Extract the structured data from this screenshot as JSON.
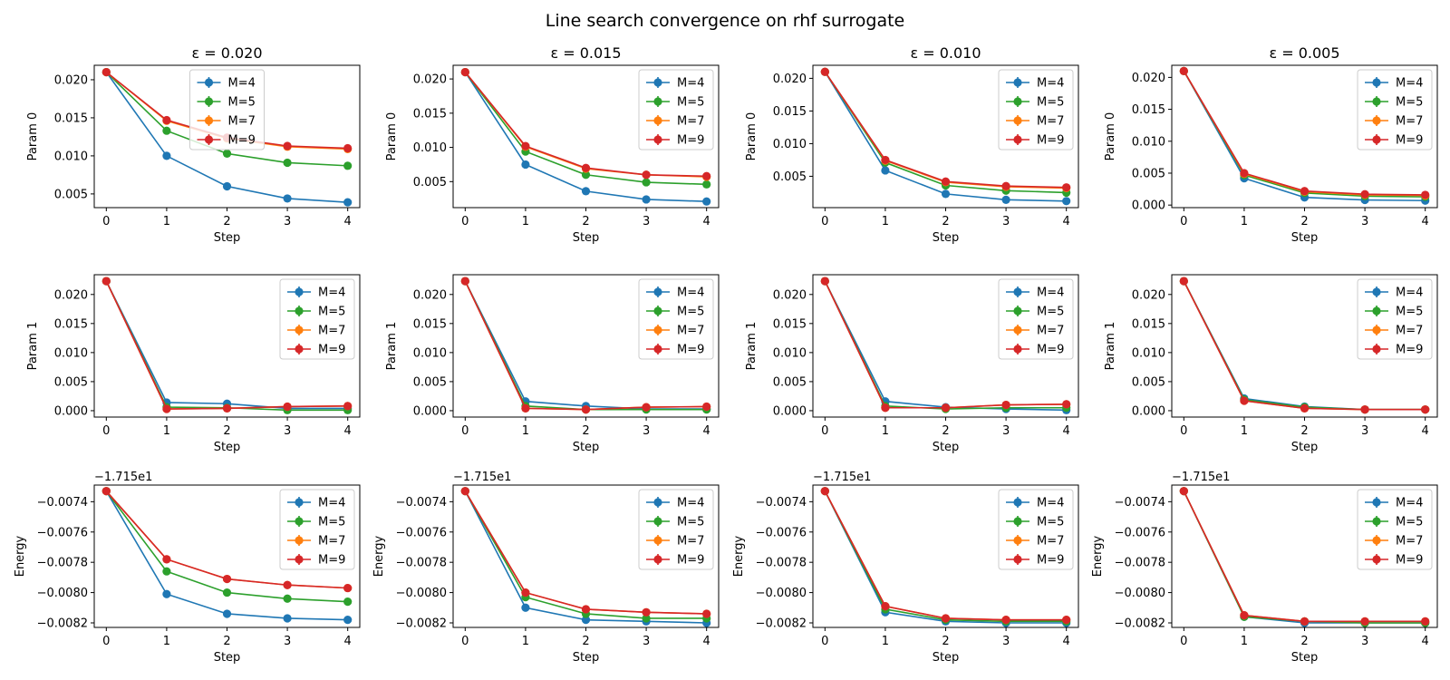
{
  "figure": {
    "suptitle": "Line search convergence on rhf surrogate",
    "colors": [
      "#1f77b4",
      "#2ca02c",
      "#ff7f0e",
      "#d62728"
    ]
  },
  "chart_data": {
    "type": "line",
    "x": [
      0,
      1,
      2,
      3,
      4
    ],
    "xlabel": "Step",
    "legend": [
      "M=4",
      "M=5",
      "M=7",
      "M=9"
    ],
    "columns": [
      {
        "title": "ε = 0.020",
        "legend_placement": [
          "upper-center",
          "upper-right",
          "upper-right"
        ]
      },
      {
        "title": "ε = 0.015",
        "legend_placement": [
          "upper-right",
          "upper-right",
          "upper-right"
        ]
      },
      {
        "title": "ε = 0.010",
        "legend_placement": [
          "upper-right",
          "upper-right",
          "upper-right"
        ]
      },
      {
        "title": "ε = 0.005",
        "legend_placement": [
          "upper-right",
          "upper-right",
          "upper-right"
        ]
      }
    ],
    "rows": [
      {
        "ylabel": "Param 0",
        "offset_text": "",
        "ylim": [
          0.0032,
          0.0215
        ],
        "ticks": [
          [
            [
              0.005,
              "0.005"
            ],
            [
              0.01,
              "0.010"
            ],
            [
              0.015,
              "0.015"
            ],
            [
              0.02,
              "0.020"
            ]
          ],
          [
            [
              0.005,
              "0.005"
            ],
            [
              0.01,
              "0.010"
            ],
            [
              0.015,
              "0.015"
            ],
            [
              0.02,
              "0.020"
            ]
          ],
          [
            [
              0.005,
              "0.005"
            ],
            [
              0.01,
              "0.010"
            ],
            [
              0.015,
              "0.015"
            ],
            [
              0.02,
              "0.020"
            ]
          ],
          [
            [
              0.0,
              "0.000"
            ],
            [
              0.005,
              "0.005"
            ],
            [
              0.01,
              "0.010"
            ],
            [
              0.015,
              "0.015"
            ],
            [
              0.02,
              "0.020"
            ]
          ]
        ],
        "ylims": [
          [
            0.0032,
            0.0219
          ],
          [
            0.0012,
            0.022
          ],
          [
            0.0002,
            0.022
          ],
          [
            -0.0004,
            0.0219
          ]
        ],
        "panels": [
          [
            [
              0.021,
              0.01,
              0.006,
              0.0044,
              0.0039
            ],
            [
              0.021,
              0.0133,
              0.0103,
              0.0091,
              0.0087
            ],
            [
              0.021,
              0.0146,
              0.0123,
              0.0112,
              0.0109
            ],
            [
              0.021,
              0.0147,
              0.0124,
              0.0113,
              0.011
            ]
          ],
          [
            [
              0.021,
              0.0075,
              0.0036,
              0.0024,
              0.0021
            ],
            [
              0.021,
              0.0094,
              0.006,
              0.0049,
              0.0046
            ],
            [
              0.021,
              0.0101,
              0.0069,
              0.006,
              0.0057
            ],
            [
              0.021,
              0.0102,
              0.007,
              0.006,
              0.0058
            ]
          ],
          [
            [
              0.021,
              0.0059,
              0.0023,
              0.0014,
              0.0012
            ],
            [
              0.021,
              0.0071,
              0.0036,
              0.0028,
              0.0025
            ],
            [
              0.021,
              0.0074,
              0.0041,
              0.0034,
              0.0032
            ],
            [
              0.021,
              0.0075,
              0.0042,
              0.0035,
              0.0033
            ]
          ],
          [
            [
              0.021,
              0.0042,
              0.0012,
              0.0008,
              0.0007
            ],
            [
              0.021,
              0.0047,
              0.0019,
              0.0014,
              0.0013
            ],
            [
              0.021,
              0.0049,
              0.0021,
              0.0016,
              0.0015
            ],
            [
              0.021,
              0.005,
              0.0022,
              0.0017,
              0.0016
            ]
          ]
        ]
      },
      {
        "ylabel": "Param 1",
        "offset_text": "",
        "ticks": [
          [
            [
              0.0,
              "0.000"
            ],
            [
              0.005,
              "0.005"
            ],
            [
              0.01,
              "0.010"
            ],
            [
              0.015,
              "0.015"
            ],
            [
              0.02,
              "0.020"
            ]
          ],
          [
            [
              0.0,
              "0.000"
            ],
            [
              0.005,
              "0.005"
            ],
            [
              0.01,
              "0.010"
            ],
            [
              0.015,
              "0.015"
            ],
            [
              0.02,
              "0.020"
            ]
          ],
          [
            [
              0.0,
              "0.000"
            ],
            [
              0.005,
              "0.005"
            ],
            [
              0.01,
              "0.010"
            ],
            [
              0.015,
              "0.015"
            ],
            [
              0.02,
              "0.020"
            ]
          ],
          [
            [
              0.0,
              "0.000"
            ],
            [
              0.005,
              "0.005"
            ],
            [
              0.01,
              "0.010"
            ],
            [
              0.015,
              "0.015"
            ],
            [
              0.02,
              "0.020"
            ]
          ]
        ],
        "ylims": [
          [
            -0.0011,
            0.0234
          ],
          [
            -0.0011,
            0.0234
          ],
          [
            -0.0011,
            0.0234
          ],
          [
            -0.0011,
            0.0234
          ]
        ],
        "panels": [
          [
            [
              0.0223,
              0.0014,
              0.0012,
              0.0004,
              0.0004
            ],
            [
              0.0223,
              0.0006,
              0.0005,
              0.0001,
              0.0001
            ],
            [
              0.0223,
              0.0003,
              0.0004,
              0.0007,
              0.0008
            ],
            [
              0.0223,
              0.0003,
              0.0004,
              0.0007,
              0.0008
            ]
          ],
          [
            [
              0.0223,
              0.0016,
              0.0008,
              0.0003,
              0.0003
            ],
            [
              0.0223,
              0.0008,
              0.0002,
              0.0002,
              0.0002
            ],
            [
              0.0223,
              0.0004,
              0.0002,
              0.0006,
              0.0007
            ],
            [
              0.0223,
              0.0004,
              0.0002,
              0.0006,
              0.0007
            ]
          ],
          [
            [
              0.0223,
              0.0016,
              0.0006,
              0.0003,
              0.0001
            ],
            [
              0.0223,
              0.0008,
              0.0003,
              0.0005,
              0.0005
            ],
            [
              0.0223,
              0.0005,
              0.0005,
              0.001,
              0.0011
            ],
            [
              0.0223,
              0.0005,
              0.0005,
              0.001,
              0.0011
            ]
          ],
          [
            [
              0.0223,
              0.0021,
              0.0007,
              0.0002,
              0.0002
            ],
            [
              0.0223,
              0.0019,
              0.0006,
              0.0002,
              0.0002
            ],
            [
              0.0223,
              0.0017,
              0.0004,
              0.0002,
              0.0002
            ],
            [
              0.0223,
              0.0017,
              0.0004,
              0.0002,
              0.0002
            ]
          ]
        ]
      },
      {
        "ylabel": "Energy",
        "offset_text": "−1.715e1",
        "ticks": [
          [
            [
              -0.0082,
              "−0.0082"
            ],
            [
              -0.008,
              "−0.0080"
            ],
            [
              -0.0078,
              "−0.0078"
            ],
            [
              -0.0076,
              "−0.0076"
            ],
            [
              -0.0074,
              "−0.0074"
            ]
          ],
          [
            [
              -0.0082,
              "−0.0082"
            ],
            [
              -0.008,
              "−0.0080"
            ],
            [
              -0.0078,
              "−0.0078"
            ],
            [
              -0.0076,
              "−0.0076"
            ],
            [
              -0.0074,
              "−0.0074"
            ]
          ],
          [
            [
              -0.0082,
              "−0.0082"
            ],
            [
              -0.008,
              "−0.0080"
            ],
            [
              -0.0078,
              "−0.0078"
            ],
            [
              -0.0076,
              "−0.0076"
            ],
            [
              -0.0074,
              "−0.0074"
            ]
          ],
          [
            [
              -0.0082,
              "−0.0082"
            ],
            [
              -0.008,
              "−0.0080"
            ],
            [
              -0.0078,
              "−0.0078"
            ],
            [
              -0.0076,
              "−0.0076"
            ],
            [
              -0.0074,
              "−0.0074"
            ]
          ]
        ],
        "ylims": [
          [
            -0.00823,
            -0.00729
          ],
          [
            -0.00823,
            -0.00729
          ],
          [
            -0.00823,
            -0.00729
          ],
          [
            -0.00823,
            -0.00729
          ]
        ],
        "panels": [
          [
            [
              -0.00733,
              -0.00801,
              -0.00814,
              -0.00817,
              -0.00818
            ],
            [
              -0.00733,
              -0.00786,
              -0.008,
              -0.00804,
              -0.00806
            ],
            [
              -0.00733,
              -0.00778,
              -0.00791,
              -0.00795,
              -0.00797
            ],
            [
              -0.00733,
              -0.00778,
              -0.00791,
              -0.00795,
              -0.00797
            ]
          ],
          [
            [
              -0.00733,
              -0.0081,
              -0.00818,
              -0.00819,
              -0.0082
            ],
            [
              -0.00733,
              -0.00803,
              -0.00814,
              -0.00817,
              -0.00817
            ],
            [
              -0.00733,
              -0.008,
              -0.00811,
              -0.00813,
              -0.00814
            ],
            [
              -0.00733,
              -0.008,
              -0.00811,
              -0.00813,
              -0.00814
            ]
          ],
          [
            [
              -0.00733,
              -0.00813,
              -0.00819,
              -0.0082,
              -0.0082
            ],
            [
              -0.00733,
              -0.00811,
              -0.00818,
              -0.00819,
              -0.00819
            ],
            [
              -0.00733,
              -0.00809,
              -0.00817,
              -0.00818,
              -0.00818
            ],
            [
              -0.00733,
              -0.00809,
              -0.00817,
              -0.00818,
              -0.00818
            ]
          ],
          [
            [
              -0.00733,
              -0.00816,
              -0.0082,
              -0.0082,
              -0.0082
            ],
            [
              -0.00733,
              -0.00816,
              -0.00819,
              -0.0082,
              -0.0082
            ],
            [
              -0.00733,
              -0.00815,
              -0.00819,
              -0.00819,
              -0.00819
            ],
            [
              -0.00733,
              -0.00815,
              -0.00819,
              -0.00819,
              -0.00819
            ]
          ]
        ]
      }
    ]
  }
}
